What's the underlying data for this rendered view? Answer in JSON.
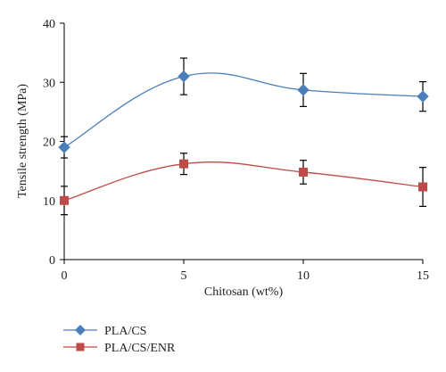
{
  "chart_data": {
    "type": "line",
    "xlabel": "Chitosan (wt%)",
    "ylabel": "Tensile strength (MPa)",
    "x": [
      0,
      5,
      10,
      15
    ],
    "xlim": [
      0,
      15
    ],
    "ylim": [
      0,
      40
    ],
    "x_ticks": [
      "0",
      "5",
      "10",
      "15"
    ],
    "y_ticks": [
      "0",
      "10",
      "20",
      "30",
      "40"
    ],
    "grid": false,
    "smooth": true,
    "legend_position": "bottom-left",
    "series": [
      {
        "name": "PLA/CS",
        "color": "#4a7ebb",
        "marker": "diamond",
        "values": [
          19.0,
          31.0,
          28.7,
          27.6
        ],
        "error": [
          1.8,
          3.1,
          2.8,
          2.5
        ]
      },
      {
        "name": "PLA/CS/ENR",
        "color": "#be4b48",
        "marker": "square",
        "values": [
          10.0,
          16.2,
          14.8,
          12.3
        ],
        "error": [
          2.4,
          1.8,
          2.0,
          3.3
        ]
      }
    ]
  }
}
